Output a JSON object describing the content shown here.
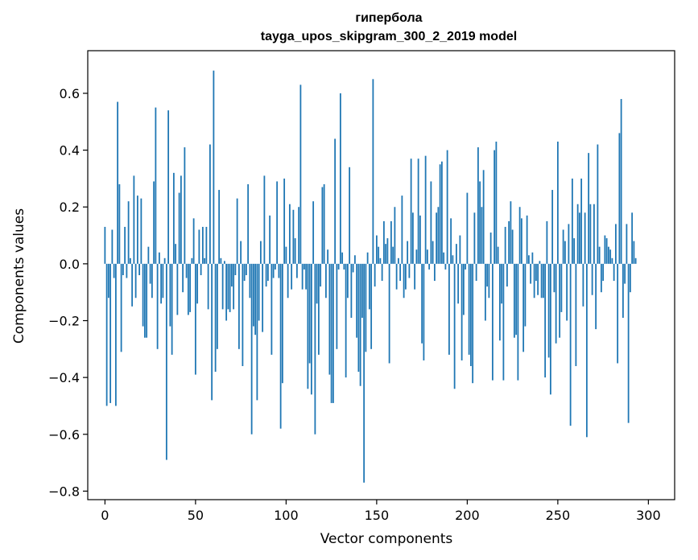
{
  "chart_data": {
    "type": "bar",
    "title": "гипербола",
    "subtitle": "tayga_upos_skipgram_300_2_2019 model",
    "xlabel": "Vector components",
    "ylabel": "Components values",
    "xlim": [
      -9.5,
      314.5
    ],
    "ylim": [
      -0.83,
      0.75
    ],
    "xticks": [
      0,
      50,
      100,
      150,
      200,
      250,
      300
    ],
    "yticks": [
      -0.8,
      -0.6,
      -0.4,
      -0.2,
      0.0,
      0.2,
      0.4,
      0.6
    ],
    "ytick_labels": [
      "−0.8",
      "−0.6",
      "−0.4",
      "−0.2",
      "0.0",
      "0.2",
      "0.4",
      "0.6"
    ],
    "grid": false,
    "bar_color": "#1f77b4",
    "x_start": 0,
    "values": [
      0.13,
      -0.5,
      -0.12,
      -0.49,
      0.12,
      -0.05,
      -0.5,
      0.57,
      0.28,
      -0.31,
      -0.04,
      0.13,
      -0.05,
      0.22,
      0.02,
      -0.15,
      0.31,
      -0.12,
      0.24,
      -0.04,
      0.23,
      -0.22,
      -0.26,
      -0.26,
      0.06,
      -0.07,
      -0.12,
      0.29,
      0.55,
      -0.3,
      0.04,
      -0.14,
      -0.12,
      0.02,
      -0.69,
      0.54,
      -0.22,
      -0.32,
      0.32,
      0.07,
      -0.18,
      0.25,
      0.31,
      -0.1,
      0.41,
      -0.05,
      -0.18,
      -0.17,
      0.02,
      0.16,
      -0.39,
      -0.14,
      0.12,
      -0.04,
      0.13,
      0.02,
      0.13,
      -0.16,
      0.42,
      -0.48,
      0.68,
      -0.38,
      -0.3,
      0.26,
      0.02,
      -0.16,
      0.01,
      -0.2,
      -0.16,
      -0.17,
      -0.08,
      -0.16,
      -0.04,
      0.23,
      -0.3,
      0.08,
      -0.36,
      -0.06,
      -0.04,
      0.28,
      -0.12,
      -0.6,
      -0.22,
      -0.25,
      -0.48,
      -0.2,
      0.08,
      -0.24,
      0.31,
      -0.08,
      -0.06,
      0.17,
      -0.32,
      -0.05,
      -0.02,
      0.29,
      -0.05,
      -0.58,
      -0.42,
      0.3,
      0.06,
      -0.12,
      0.21,
      -0.09,
      0.19,
      0.09,
      -0.05,
      0.2,
      0.63,
      -0.09,
      -0.02,
      -0.09,
      -0.44,
      -0.35,
      -0.46,
      0.22,
      -0.6,
      -0.14,
      -0.32,
      -0.08,
      0.27,
      0.28,
      -0.12,
      0.05,
      -0.39,
      -0.49,
      -0.49,
      0.44,
      -0.3,
      -0.02,
      0.6,
      0.04,
      -0.02,
      -0.4,
      -0.12,
      0.34,
      -0.19,
      -0.03,
      0.03,
      -0.26,
      -0.38,
      -0.43,
      -0.19,
      -0.77,
      -0.31,
      0.04,
      -0.16,
      -0.3,
      0.65,
      -0.08,
      0.1,
      0.06,
      0.02,
      -0.06,
      0.15,
      0.07,
      0.09,
      -0.35,
      0.15,
      0.06,
      0.2,
      -0.09,
      0.02,
      -0.06,
      0.24,
      -0.12,
      -0.09,
      0.08,
      -0.05,
      0.37,
      0.18,
      -0.09,
      0.05,
      0.37,
      0.17,
      -0.28,
      -0.34,
      0.38,
      0.05,
      -0.02,
      0.29,
      0.08,
      -0.06,
      0.18,
      0.2,
      0.35,
      0.36,
      0.04,
      -0.02,
      0.4,
      -0.32,
      0.16,
      0.03,
      -0.44,
      0.07,
      -0.14,
      0.1,
      -0.34,
      -0.18,
      -0.02,
      0.25,
      -0.32,
      -0.36,
      -0.42,
      0.18,
      -0.06,
      0.41,
      0.29,
      0.2,
      0.33,
      -0.2,
      -0.08,
      -0.12,
      0.11,
      -0.41,
      0.4,
      0.43,
      0.06,
      -0.27,
      -0.14,
      -0.41,
      0.13,
      -0.08,
      0.15,
      0.22,
      0.12,
      -0.26,
      -0.25,
      -0.41,
      0.2,
      0.16,
      -0.31,
      -0.22,
      0.17,
      0.03,
      -0.07,
      0.04,
      -0.12,
      -0.06,
      -0.11,
      0.01,
      -0.12,
      -0.12,
      -0.4,
      0.15,
      -0.33,
      -0.46,
      0.26,
      -0.1,
      -0.28,
      0.43,
      -0.26,
      -0.17,
      0.12,
      0.08,
      -0.2,
      0.14,
      -0.57,
      0.3,
      0.09,
      -0.36,
      0.21,
      0.18,
      0.3,
      -0.15,
      0.18,
      -0.61,
      0.39,
      0.21,
      -0.11,
      0.21,
      -0.23,
      0.42,
      0.06,
      -0.1,
      -0.06,
      0.1,
      0.09,
      0.06,
      0.05,
      0.02,
      -0.06,
      0.14,
      -0.35,
      0.46,
      0.58,
      -0.19,
      -0.07,
      0.14,
      -0.56,
      -0.1,
      0.18,
      0.08,
      0.02
    ]
  }
}
